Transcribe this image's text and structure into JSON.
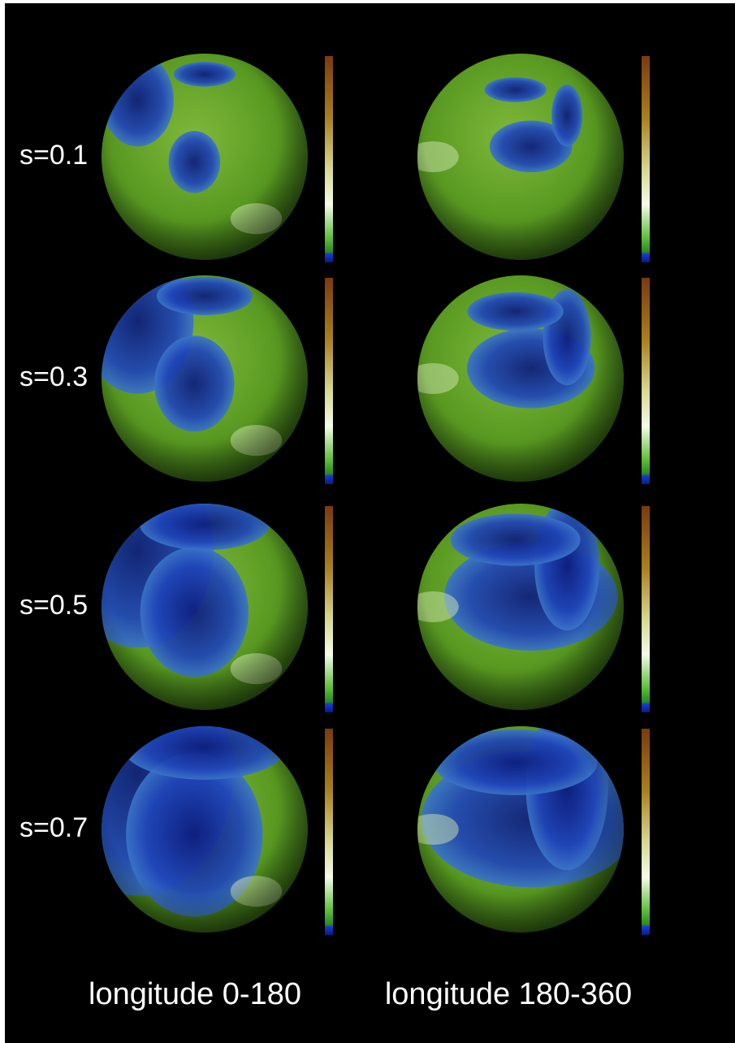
{
  "rows": [
    {
      "label": "s=0.1"
    },
    {
      "label": "s=0.3"
    },
    {
      "label": "s=0.5"
    },
    {
      "label": "s=0.7"
    }
  ],
  "columns": [
    {
      "label": "longitude 0-180"
    },
    {
      "label": "longitude 180-360"
    }
  ]
}
